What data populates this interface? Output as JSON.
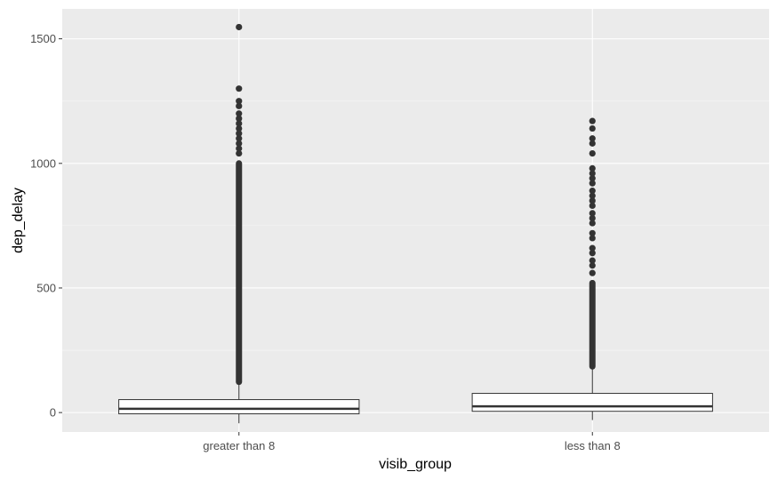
{
  "chart_data": {
    "type": "boxplot",
    "title": "",
    "xlabel": "visib_group",
    "ylabel": "dep_delay",
    "categories": [
      "greater than 8",
      "less than 8"
    ],
    "ylim": [
      -78,
      1620
    ],
    "y_ticks": [
      0,
      500,
      1000,
      1500
    ],
    "y_tick_labels": [
      "0",
      "500",
      "1000",
      "1500"
    ],
    "grid": true,
    "boxes": [
      {
        "category": "greater than 8",
        "lower_whisker": -43,
        "q1": -5,
        "median": 15,
        "q3": 52,
        "upper_whisker": 123,
        "outlier_band": [
          123,
          1000
        ],
        "outliers": [
          1040,
          1060,
          1080,
          1100,
          1120,
          1140,
          1160,
          1180,
          1200,
          1230,
          1250,
          1300,
          1547
        ]
      },
      {
        "category": "less than 8",
        "lower_whisker": -30,
        "q1": 5,
        "median": 25,
        "q3": 77,
        "upper_whisker": 185,
        "outlier_band": [
          185,
          520
        ],
        "outliers": [
          560,
          590,
          610,
          640,
          660,
          700,
          720,
          760,
          780,
          800,
          830,
          850,
          870,
          890,
          920,
          940,
          960,
          980,
          1040,
          1080,
          1100,
          1140,
          1170
        ]
      }
    ]
  }
}
